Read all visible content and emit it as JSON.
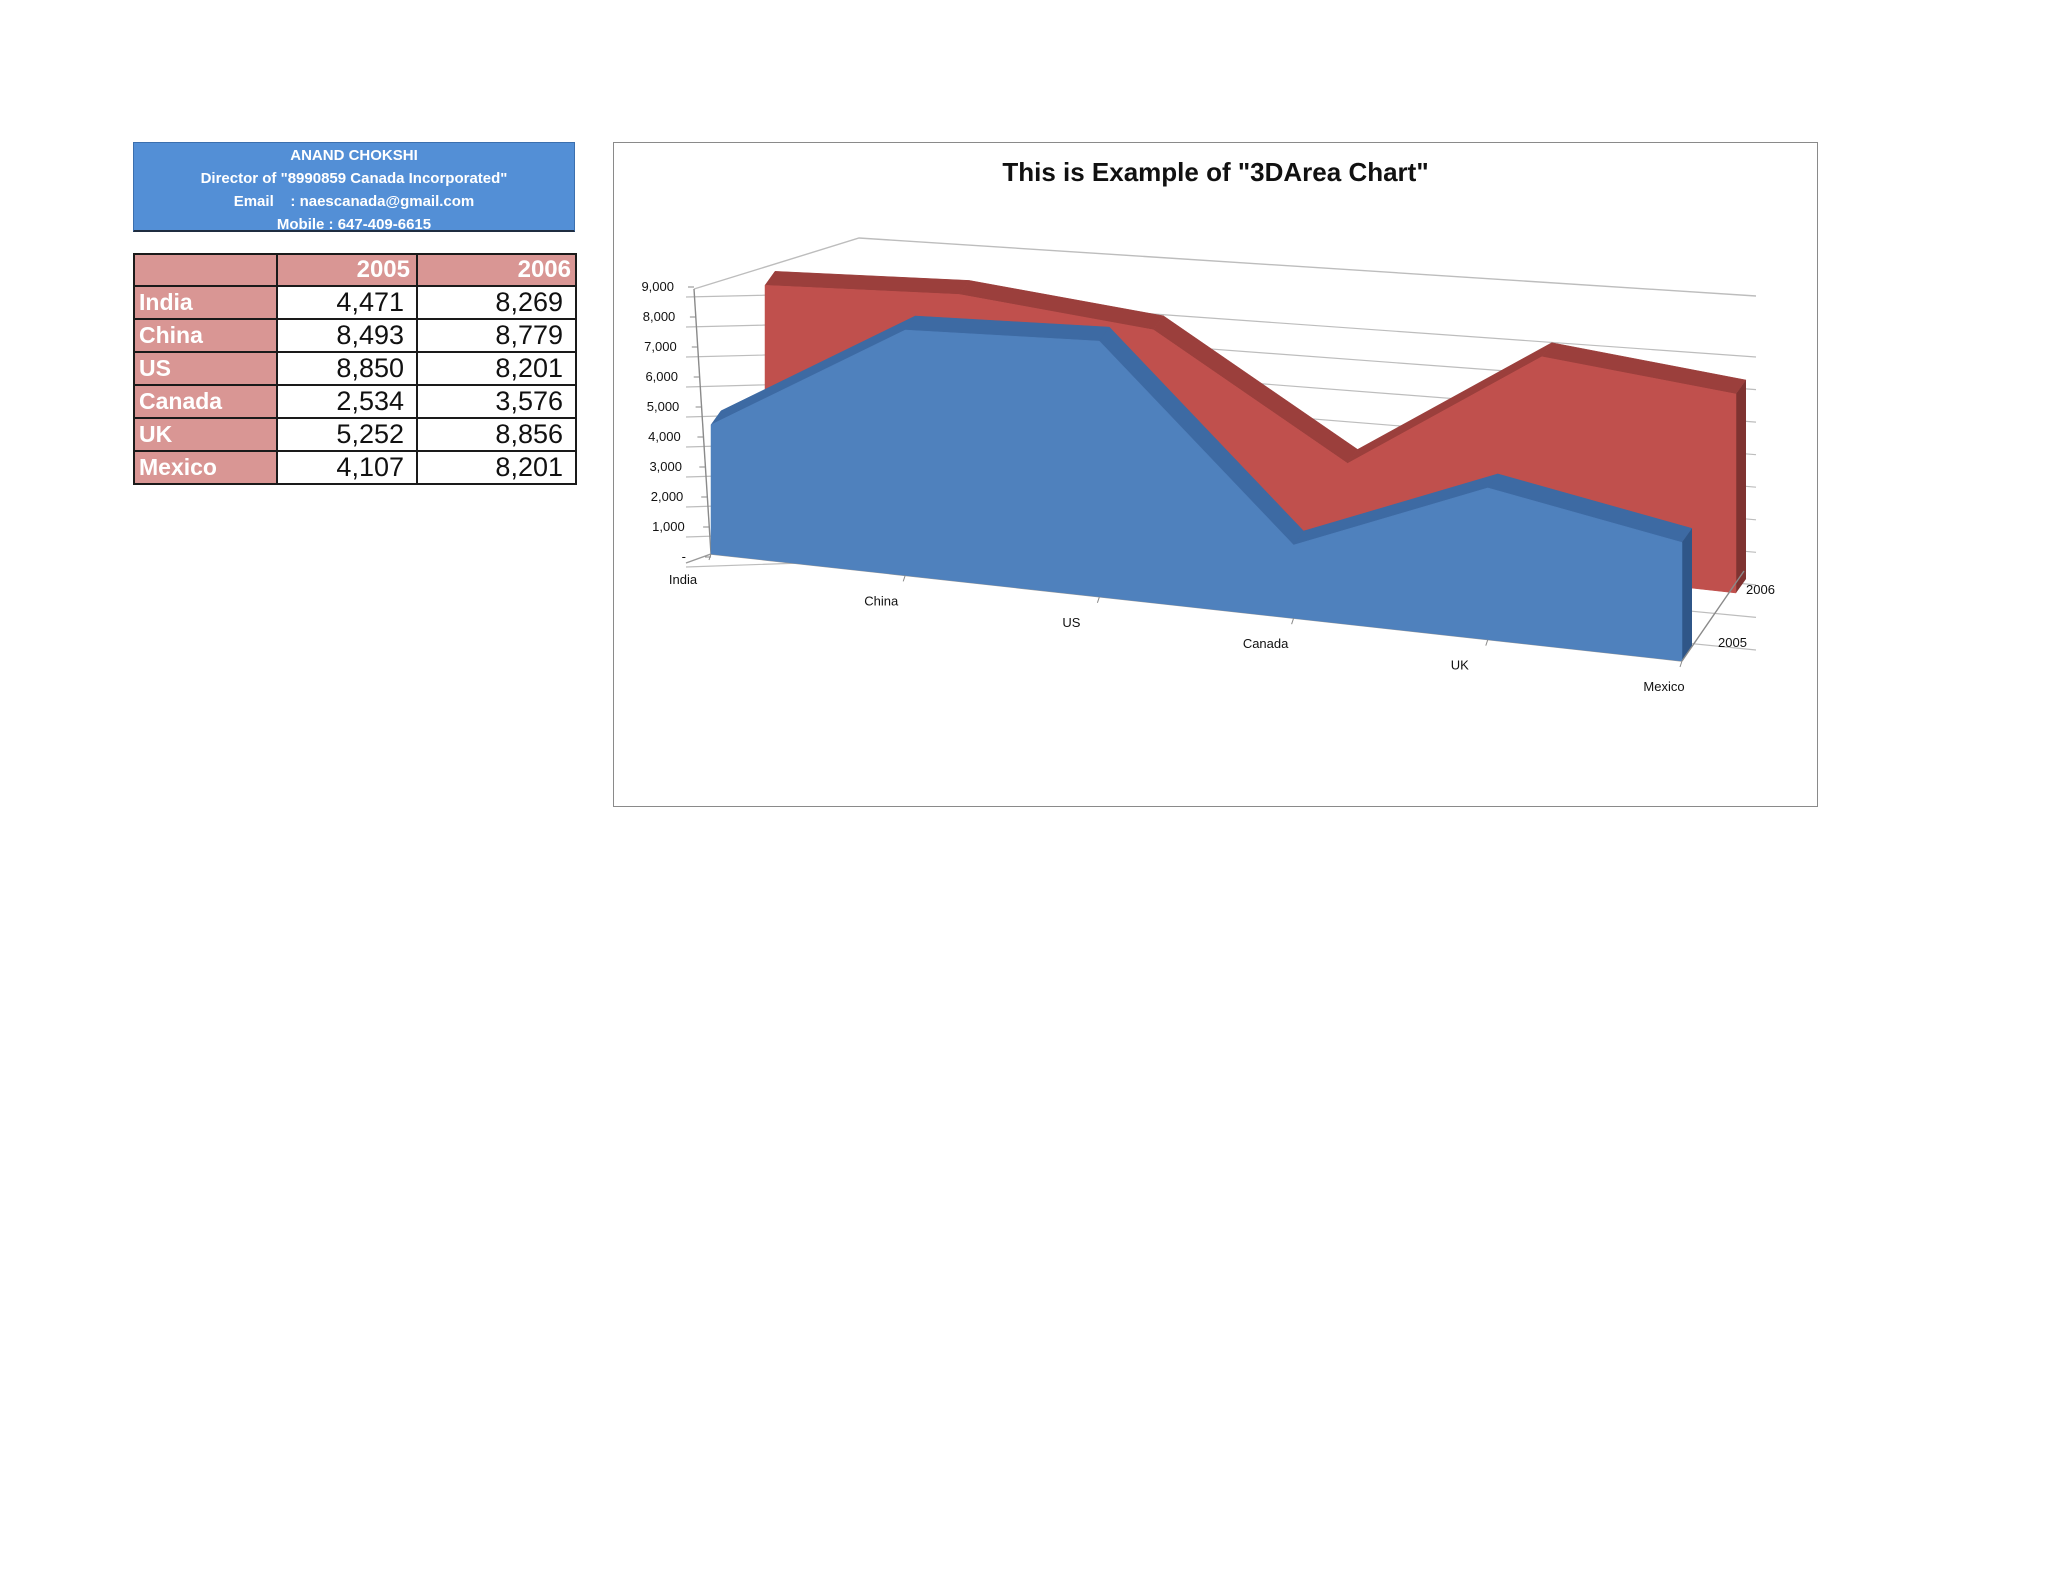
{
  "header": {
    "name": "ANAND CHOKSHI",
    "title": "Director of \"8990859 Canada Incorporated\"",
    "email": "Email    : naescanada@gmail.com",
    "mobile": "Mobile : 647-409-6615"
  },
  "table": {
    "columns": [
      "",
      "2005",
      "2006"
    ],
    "rows": [
      {
        "country": "India",
        "v2005": "4,471",
        "v2006": "8,269"
      },
      {
        "country": "China",
        "v2005": "8,493",
        "v2006": "8,779"
      },
      {
        "country": "US",
        "v2005": "8,850",
        "v2006": "8,201"
      },
      {
        "country": "Canada",
        "v2005": "2,534",
        "v2006": "3,576"
      },
      {
        "country": "UK",
        "v2005": "5,252",
        "v2006": "8,856"
      },
      {
        "country": "Mexico",
        "v2005": "4,107",
        "v2006": "8,201"
      }
    ]
  },
  "chart_data": {
    "type": "area",
    "subtype": "3d-area",
    "title": "This is Example of \"3DArea Chart\"",
    "categories": [
      "India",
      "China",
      "US",
      "Canada",
      "UK",
      "Mexico"
    ],
    "series": [
      {
        "name": "2005",
        "values": [
          4471,
          8493,
          8850,
          2534,
          5252,
          4107
        ],
        "color": "#4f81bd"
      },
      {
        "name": "2006",
        "values": [
          8269,
          8779,
          8201,
          3576,
          8856,
          8201
        ],
        "color": "#c0504d"
      }
    ],
    "ylim": [
      0,
      9000
    ],
    "yticks": [
      "-",
      "1,000",
      "2,000",
      "3,000",
      "4,000",
      "5,000",
      "6,000",
      "7,000",
      "8,000",
      "9,000"
    ],
    "depth_labels": [
      "2005",
      "2006"
    ],
    "grid": true,
    "legend": "none"
  }
}
